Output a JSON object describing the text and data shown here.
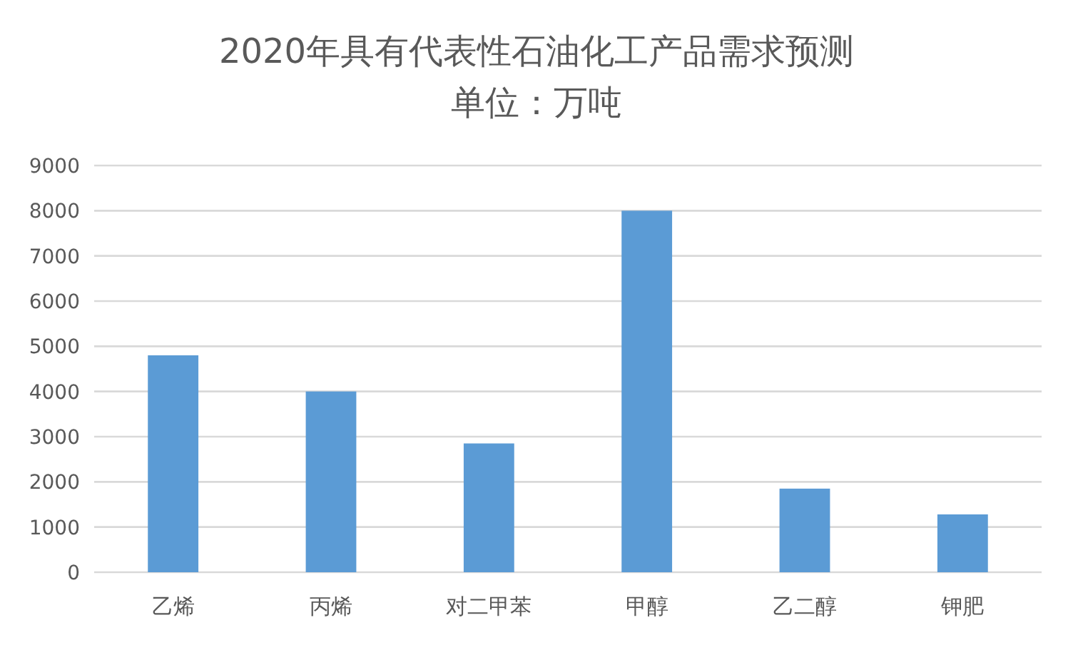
{
  "chart_data": {
    "type": "bar",
    "title": "2020年具有代表性石油化工产品需求预测",
    "subtitle": "单位：万吨",
    "categories": [
      "乙烯",
      "丙烯",
      "对二甲苯",
      "甲醇",
      "乙二醇",
      "钾肥"
    ],
    "values": [
      4800,
      4000,
      2850,
      8000,
      1850,
      1280
    ],
    "color": "#5b9bd5",
    "ylim": [
      0,
      9000
    ],
    "yticks": [
      0,
      1000,
      2000,
      3000,
      4000,
      5000,
      6000,
      7000,
      8000,
      9000
    ],
    "grid": "y",
    "legend": false
  }
}
